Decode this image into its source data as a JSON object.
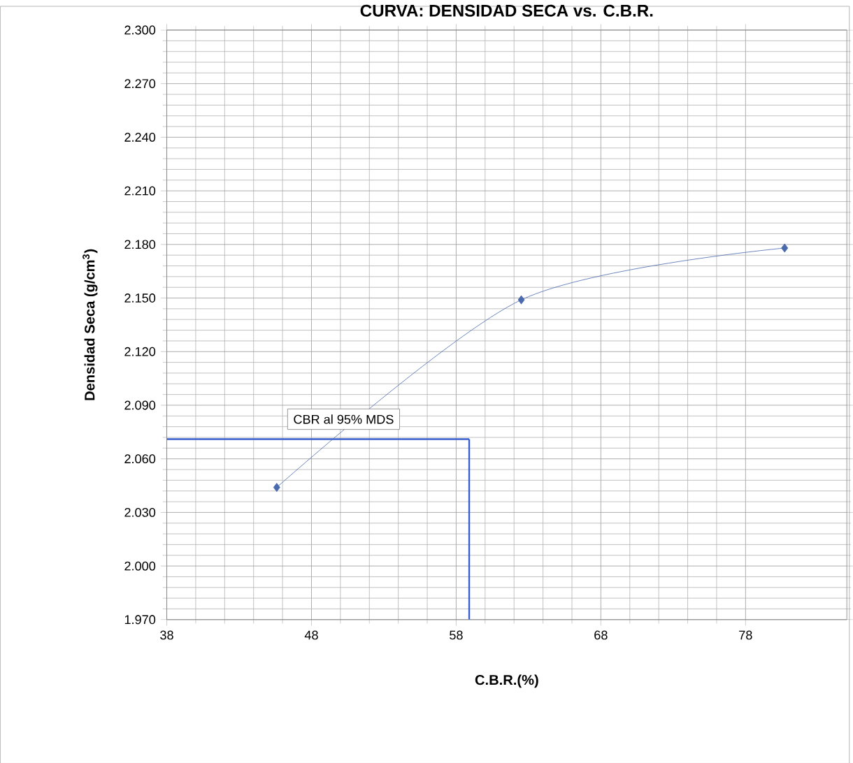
{
  "chart_data": {
    "type": "line",
    "title": "CURVA: DENSIDAD SECA vs. C.B.R.",
    "xlabel": "C.B.R.(%)",
    "ylabel": "Densidad  Seca (g/cm$^{3}$)",
    "x": [
      45.6,
      62.5,
      80.7
    ],
    "series": [
      {
        "color": "#4a6aae",
        "values": [
          2.044,
          2.149,
          2.178
        ]
      }
    ],
    "xlim": [
      38,
      85
    ],
    "xticks": [
      38,
      48,
      58,
      68,
      78
    ],
    "ylim": [
      1.97,
      2.3
    ],
    "yticks": [
      {
        "value": 1.97,
        "label": "1.970"
      },
      {
        "value": 2.0,
        "label": "2.000"
      },
      {
        "value": 2.03,
        "label": "2.030"
      },
      {
        "value": 2.06,
        "label": "2.060"
      },
      {
        "value": 2.09,
        "label": "2.090"
      },
      {
        "value": 2.12,
        "label": "2.120"
      },
      {
        "value": 2.15,
        "label": "2.150"
      },
      {
        "value": 2.18,
        "label": "2.180"
      },
      {
        "value": 2.21,
        "label": "2.210"
      },
      {
        "value": 2.24,
        "label": "2.240"
      },
      {
        "value": 2.27,
        "label": "2.270"
      },
      {
        "value": 2.3,
        "label": "2.300"
      }
    ],
    "ref_lines": [
      {
        "axis": "y",
        "value": 2.071,
        "color": "#3a5fcd"
      },
      {
        "axis": "x",
        "value": 58.9,
        "color": "#3a5fcd"
      }
    ],
    "annotations": [
      "CBR al 95% MDS"
    ],
    "grid": true,
    "marker": "diamond",
    "line_style": "solid"
  }
}
